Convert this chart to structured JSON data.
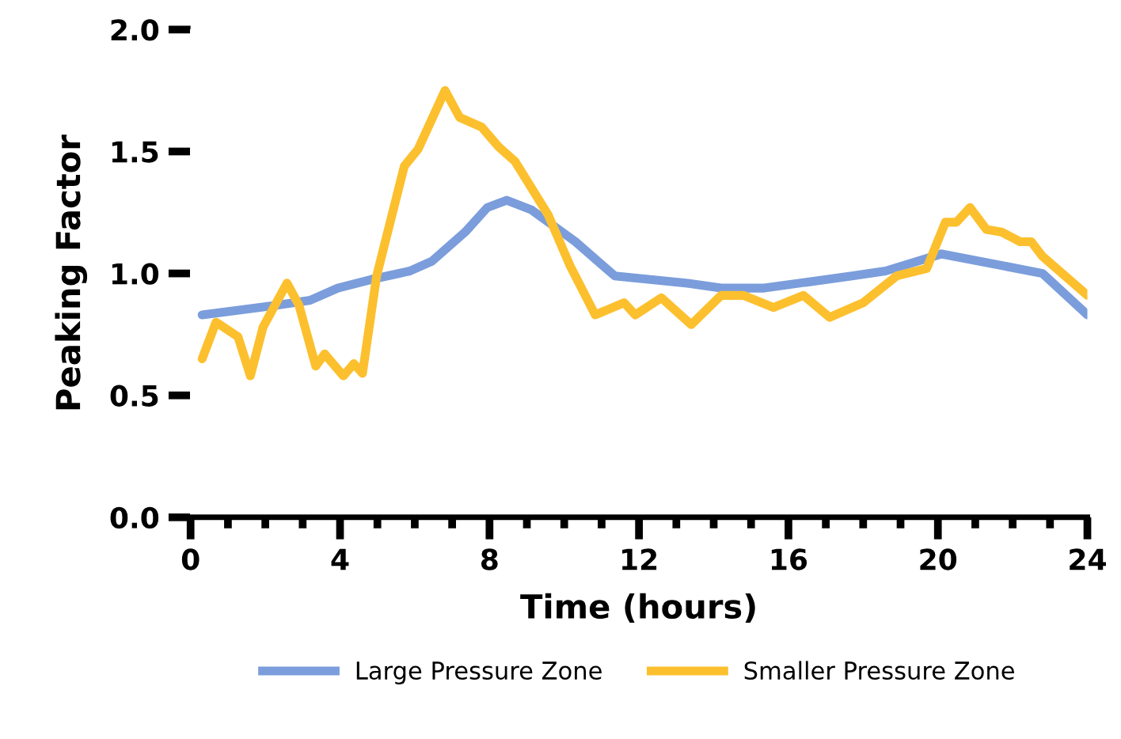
{
  "chart_data": {
    "type": "line",
    "xlabel": "Time (hours)",
    "ylabel": "Peaking Factor",
    "xlim": [
      0,
      24
    ],
    "xticks": [
      0,
      4,
      8,
      12,
      16,
      20,
      24
    ],
    "ylim": [
      0,
      2.0
    ],
    "yticks": [
      {
        "value": 0,
        "label": "0.0"
      },
      0.5,
      {
        "value": 1,
        "label": "1.0"
      },
      1.5,
      {
        "value": 2,
        "label": "2.0"
      }
    ],
    "grid": false,
    "legend": "bottom",
    "marker": "none",
    "line_style": "solid",
    "series": [
      {
        "name": "Large Pressure Zone",
        "color": "#7b9ddb",
        "x": [
          0.31,
          2.31,
          3.2,
          3.94,
          4.83,
          5.87,
          6.46,
          7.35,
          7.94,
          8.46,
          9.13,
          10.3,
          11.35,
          13.3,
          14.2,
          15.35,
          17.7,
          18.6,
          20.1,
          22.8,
          24.0
        ],
        "values": [
          0.83,
          0.87,
          0.89,
          0.94,
          0.975,
          1.01,
          1.05,
          1.17,
          1.27,
          1.3,
          1.26,
          1.13,
          0.99,
          0.96,
          0.94,
          0.94,
          0.99,
          1.01,
          1.08,
          1.0,
          0.83
        ]
      },
      {
        "name": "Smaller Pressure Zone",
        "color": "#fcc02e",
        "x": [
          0.31,
          0.68,
          1.27,
          1.6,
          1.94,
          2.58,
          2.9,
          3.35,
          3.59,
          4.09,
          4.37,
          4.6,
          4.98,
          5.72,
          6.09,
          6.81,
          7.2,
          7.79,
          8.24,
          8.68,
          9.57,
          10.16,
          10.83,
          11.6,
          11.9,
          12.6,
          13.4,
          14.2,
          14.8,
          15.6,
          16.4,
          17.1,
          18.0,
          18.9,
          19.7,
          20.2,
          20.5,
          20.86,
          21.3,
          21.7,
          22.2,
          22.5,
          22.8,
          24.0
        ],
        "values": [
          0.65,
          0.8,
          0.74,
          0.58,
          0.78,
          0.96,
          0.87,
          0.62,
          0.67,
          0.58,
          0.63,
          0.59,
          0.99,
          1.44,
          1.51,
          1.75,
          1.64,
          1.6,
          1.52,
          1.46,
          1.24,
          1.03,
          0.83,
          0.88,
          0.83,
          0.9,
          0.79,
          0.91,
          0.91,
          0.86,
          0.91,
          0.82,
          0.88,
          0.99,
          1.02,
          1.21,
          1.21,
          1.27,
          1.18,
          1.17,
          1.13,
          1.13,
          1.07,
          0.91
        ]
      }
    ]
  }
}
